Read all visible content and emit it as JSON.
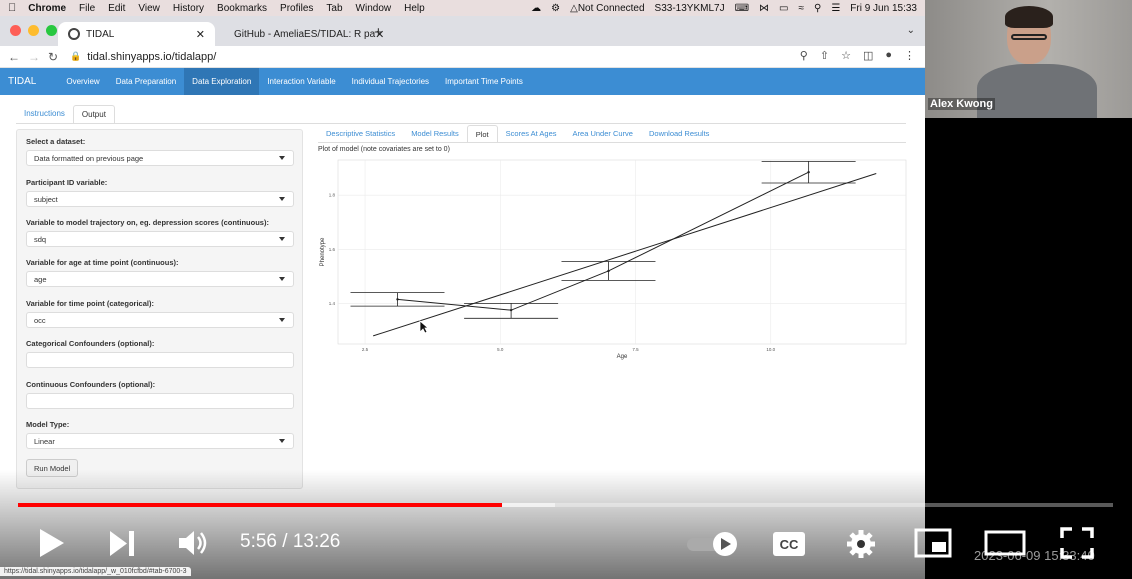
{
  "menubar": {
    "app": "Chrome",
    "items": [
      "File",
      "Edit",
      "View",
      "History",
      "Bookmarks",
      "Profiles",
      "Tab",
      "Window",
      "Help"
    ],
    "vpn": "Not Connected",
    "hostname": "S33-13YKML7J",
    "datetime": "Fri 9 Jun  15:33"
  },
  "browser": {
    "tab_active": "TIDAL",
    "tab_inactive": "GitHub - AmeliaES/TIDAL: R pa",
    "url": "tidal.shinyapps.io/tidalapp/",
    "status_url": "https://tidal.shinyapps.io/tidalapp/_w_010fcfbd/#tab-6700-3"
  },
  "app": {
    "brand": "TIDAL",
    "nav": [
      "Overview",
      "Data Preparation",
      "Data Exploration",
      "Interaction Variable",
      "Individual Trajectories",
      "Important Time Points"
    ],
    "subtabs": [
      "Instructions",
      "Output"
    ],
    "sidebar": {
      "dataset_label": "Select a dataset:",
      "dataset_value": "Data formatted on previous page",
      "id_label": "Participant ID variable:",
      "id_value": "subject",
      "traj_label": "Variable to model trajectory on, eg. depression scores (continuous):",
      "traj_value": "sdq",
      "age_label": "Variable for age at time point (continuous):",
      "age_value": "age",
      "time_label": "Variable for time point (categorical):",
      "time_value": "occ",
      "cat_label": "Categorical Confounders (optional):",
      "cat_value": "",
      "cont_label": "Continuous Confounders (optional):",
      "cont_value": "",
      "model_label": "Model Type:",
      "model_value": "Linear",
      "run_label": "Run Model"
    },
    "output_tabs": [
      "Descriptive Statistics",
      "Model Results",
      "Plot",
      "Scores At Ages",
      "Area Under Curve",
      "Download Results"
    ],
    "plot_title": "Plot of model (note covariates are set to 0)"
  },
  "chart_data": {
    "type": "line",
    "xlabel": "Age",
    "ylabel": "Phenotype",
    "x_ticks": [
      "2.5",
      "5.0",
      "7.5",
      "10.0"
    ],
    "y_ticks": [
      "1.4",
      "1.6",
      "1.8"
    ],
    "xlim": [
      2.0,
      12.5
    ],
    "ylim": [
      1.25,
      1.93
    ],
    "grid": true,
    "series": [
      {
        "type": "errorbar",
        "x": [
          3.1,
          5.2,
          7.0,
          10.7
        ],
        "y": [
          1.415,
          1.375,
          1.52,
          1.885
        ],
        "ymin": [
          1.39,
          1.345,
          1.485,
          1.845
        ],
        "ymax": [
          1.44,
          1.4,
          1.555,
          1.925
        ]
      },
      {
        "type": "fit",
        "x": [
          2.65,
          11.95
        ],
        "y": [
          1.28,
          1.88
        ]
      }
    ]
  },
  "webcam": {
    "name": "Alex Kwong"
  },
  "player": {
    "current": "5:56",
    "duration": "13:26",
    "time_text": "5:56 / 13:26",
    "played_fraction": 0.442,
    "buffered_fraction": 0.49,
    "timestamp_overlay": "2023-06-09  15:33:40"
  }
}
